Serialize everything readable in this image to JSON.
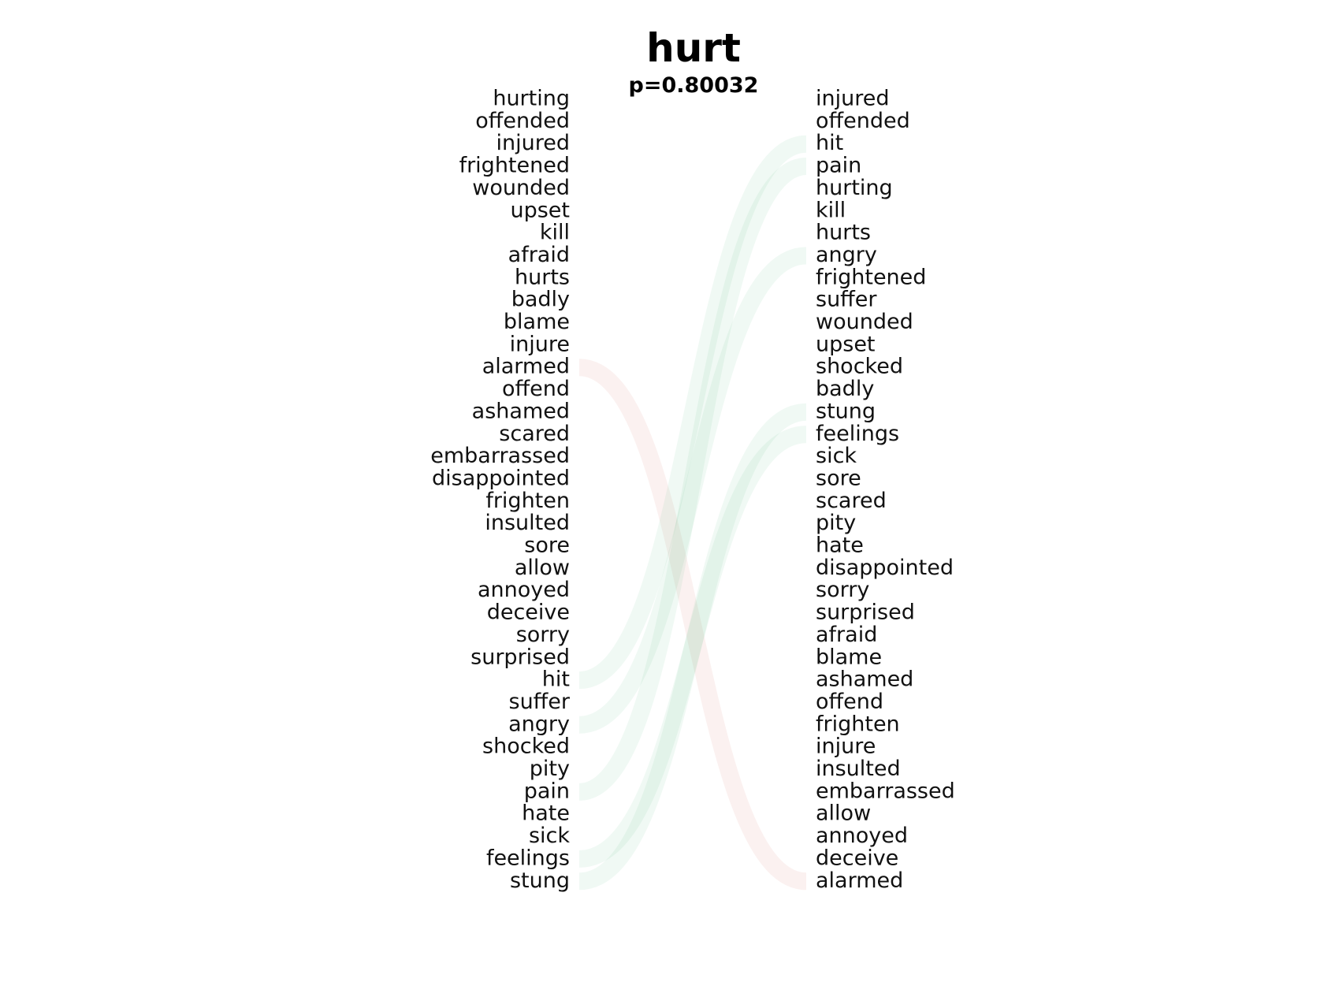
{
  "chart_data": {
    "type": "bump",
    "title": "hurt",
    "subtitle": "p=0.80032",
    "left_words": [
      "hurting",
      "offended",
      "injured",
      "frightened",
      "wounded",
      "upset",
      "kill",
      "afraid",
      "hurts",
      "badly",
      "blame",
      "injure",
      "alarmed",
      "offend",
      "ashamed",
      "scared",
      "embarrassed",
      "disappointed",
      "frighten",
      "insulted",
      "sore",
      "allow",
      "annoyed",
      "deceive",
      "sorry",
      "surprised",
      "hit",
      "suffer",
      "angry",
      "shocked",
      "pity",
      "pain",
      "hate",
      "sick",
      "feelings",
      "stung"
    ],
    "right_words": [
      "injured",
      "offended",
      "hit",
      "pain",
      "hurting",
      "kill",
      "hurts",
      "angry",
      "frightened",
      "suffer",
      "wounded",
      "upset",
      "shocked",
      "badly",
      "stung",
      "feelings",
      "sick",
      "sore",
      "scared",
      "pity",
      "hate",
      "disappointed",
      "sorry",
      "surprised",
      "afraid",
      "blame",
      "ashamed",
      "offend",
      "frighten",
      "injure",
      "insulted",
      "embarrassed",
      "allow",
      "annoyed",
      "deceive",
      "alarmed"
    ],
    "highlighted_links": [
      {
        "word": "alarmed",
        "left_rank": 13,
        "right_rank": 36,
        "color": "#c0392b"
      },
      {
        "word": "hit",
        "left_rank": 27,
        "right_rank": 3,
        "color": "#27ae60"
      },
      {
        "word": "angry",
        "left_rank": 29,
        "right_rank": 8,
        "color": "#27ae60"
      },
      {
        "word": "pain",
        "left_rank": 32,
        "right_rank": 4,
        "color": "#27ae60"
      },
      {
        "word": "feelings",
        "left_rank": 35,
        "right_rank": 16,
        "color": "#27ae60"
      },
      {
        "word": "stung",
        "left_rank": 36,
        "right_rank": 15,
        "color": "#27ae60"
      }
    ],
    "colors": {
      "rank_drop": "#c0392b",
      "rank_rise": "#27ae60",
      "text": "#111111"
    }
  }
}
